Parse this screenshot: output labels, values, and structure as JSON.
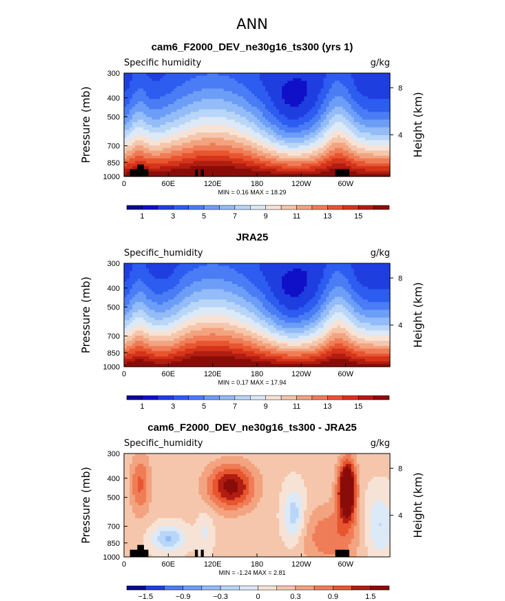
{
  "figure": {
    "title": "ANN"
  },
  "colors": {
    "sequential": [
      "#0a0a8c",
      "#1010c8",
      "#1f3ee0",
      "#2d5cf0",
      "#4a7cf5",
      "#6d9ef7",
      "#93bcf8",
      "#b9d6f8",
      "#dce9f7",
      "#f7e3d6",
      "#f5c6ab",
      "#f3a37f",
      "#ef7d57",
      "#e8552f",
      "#d5341b",
      "#b11d11",
      "#8a0c08"
    ],
    "diverging": [
      "#0a0a8c",
      "#1f3ee0",
      "#4a7cf5",
      "#6d9ef7",
      "#93bcf8",
      "#b9d6f8",
      "#dce9f7",
      "#f7e3d6",
      "#f5c6ab",
      "#f3a37f",
      "#ef7d57",
      "#e8552f",
      "#b11d11",
      "#8a0c08"
    ],
    "land_mask": "#000000"
  },
  "chart_data": [
    {
      "type": "heatmap",
      "title": "cam6_F2000_DEV_ne30g16_ts300 (yrs 1)",
      "variable": "Specific humidity",
      "units": "g/kg",
      "ylabel": "Pressure (mb)",
      "ylabel_right": "Height (km)",
      "xlim": [
        0,
        360
      ],
      "x_ticks": [
        "0",
        "60E",
        "120E",
        "180",
        "120W",
        "60W"
      ],
      "y_ticks": [
        "300",
        "400",
        "500",
        "700",
        "850",
        "1000"
      ],
      "y_ticks_right": [
        "8",
        "4"
      ],
      "stats": {
        "min_label": "MIN =",
        "min": "0.16",
        "max_label": "MAX =",
        "max": "18.29"
      },
      "colorbar_labels": [
        "1",
        "3",
        "5",
        "7",
        "9",
        "11",
        "13",
        "15"
      ],
      "palette": "sequential",
      "bias": 0.0
    },
    {
      "type": "heatmap",
      "title": "JRA25",
      "variable": "Specific_humidity",
      "units": "g/kg",
      "ylabel": "Pressure (mb)",
      "ylabel_right": "Height (km)",
      "xlim": [
        0,
        360
      ],
      "x_ticks": [
        "0",
        "60E",
        "120E",
        "180",
        "120W",
        "60W"
      ],
      "y_ticks": [
        "300",
        "400",
        "500",
        "700",
        "850",
        "1000"
      ],
      "y_ticks_right": [
        "8",
        "4"
      ],
      "stats": {
        "min_label": "MIN =",
        "min": "0.17",
        "max_label": "MAX =",
        "max": "17.94"
      },
      "colorbar_labels": [
        "1",
        "3",
        "5",
        "7",
        "9",
        "11",
        "13",
        "15"
      ],
      "palette": "sequential",
      "bias": 0.0
    },
    {
      "type": "heatmap",
      "title": "cam6_F2000_DEV_ne30g16_ts300 - JRA25",
      "variable": "Specific_humidity",
      "units": "g/kg",
      "ylabel": "Pressure (mb)",
      "ylabel_right": "Height (km)",
      "xlim": [
        0,
        360
      ],
      "x_ticks": [
        "0",
        "60E",
        "120E",
        "180",
        "120W",
        "60W"
      ],
      "y_ticks": [
        "300",
        "400",
        "500",
        "700",
        "850",
        "1000"
      ],
      "y_ticks_right": [
        "8",
        "4"
      ],
      "stats": {
        "min_label": "MIN =",
        "min": "-1.24",
        "max_label": "MAX =",
        "max": "2.81"
      },
      "colorbar_labels": [
        "−1.5",
        "−0.9",
        "−0.3",
        "0",
        "0.3",
        "0.9",
        "1.5"
      ],
      "palette": "diverging",
      "bias": 0.0
    }
  ]
}
